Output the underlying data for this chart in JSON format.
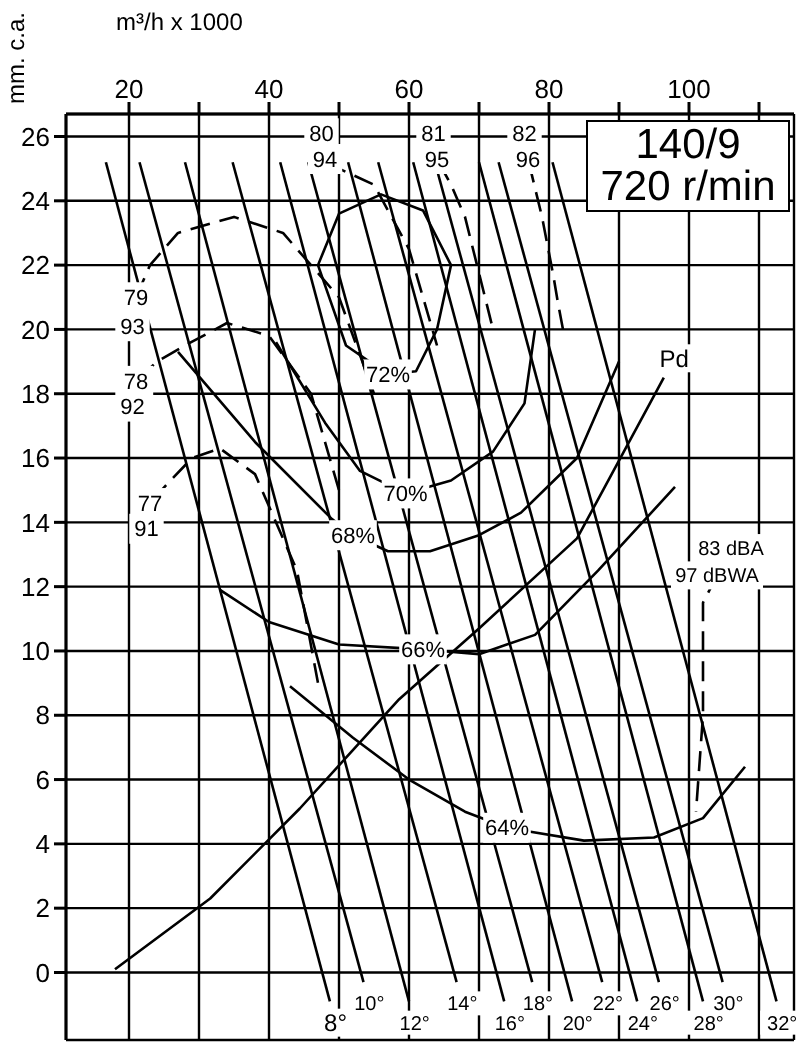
{
  "chart_data": {
    "type": "line",
    "xlabel": "m³/h x 1000",
    "ylabel": "mm. c.a.",
    "xlim": [
      11,
      115
    ],
    "ylim": [
      -2.1,
      26.7
    ],
    "xticks": [
      20,
      {
        "value": 30,
        "label": null
      },
      40,
      {
        "value": 50,
        "label": null
      },
      60,
      {
        "value": 70,
        "label": null
      },
      80,
      {
        "value": 90,
        "label": null
      },
      100,
      {
        "value": 110,
        "label": null
      }
    ],
    "yticks": [
      0,
      2,
      4,
      6,
      8,
      10,
      12,
      14,
      16,
      18,
      20,
      22,
      24,
      26
    ],
    "grid": true,
    "marker": "none",
    "line_style": "solid",
    "series": [
      {
        "name": "8°",
        "color": "#000000",
        "x": [
          16.7,
          48.7
        ],
        "values": [
          25.2,
          -0.9
        ]
      },
      {
        "name": "10°",
        "color": "#000000",
        "x": [
          21.5,
          53.5
        ],
        "values": [
          25.2,
          -0.3
        ]
      },
      {
        "name": "12°",
        "color": "#000000",
        "x": [
          28,
          60
        ],
        "values": [
          25.2,
          -0.9
        ]
      },
      {
        "name": "14°",
        "color": "#000000",
        "x": [
          34.8,
          66.8
        ],
        "values": [
          25.2,
          -0.3
        ]
      },
      {
        "name": "16°",
        "color": "#000000",
        "x": [
          41.6,
          73.6
        ],
        "values": [
          25.2,
          -0.9
        ]
      },
      {
        "name": "18°",
        "color": "#000000",
        "x": [
          45.6,
          77.6
        ],
        "values": [
          25.2,
          -0.3
        ]
      },
      {
        "name": "20°",
        "color": "#000000",
        "x": [
          51.3,
          83.3
        ],
        "values": [
          25.2,
          -0.9
        ]
      },
      {
        "name": "22°",
        "color": "#000000",
        "x": [
          55.6,
          87.6
        ],
        "values": [
          25.2,
          -0.3
        ]
      },
      {
        "name": "24°",
        "color": "#000000",
        "x": [
          60.6,
          92.6
        ],
        "values": [
          25.2,
          -0.9
        ]
      },
      {
        "name": "26°",
        "color": "#000000",
        "x": [
          63.7,
          95.7
        ],
        "values": [
          25.2,
          -0.3
        ]
      },
      {
        "name": "28°",
        "color": "#000000",
        "x": [
          70,
          102
        ],
        "values": [
          25.2,
          -0.9
        ]
      },
      {
        "name": "30°",
        "color": "#000000",
        "x": [
          72.8,
          104.8
        ],
        "values": [
          25.2,
          -0.3
        ]
      },
      {
        "name": "32°",
        "color": "#000000",
        "x": [
          80.5,
          112.5
        ],
        "values": [
          25.2,
          -0.9
        ]
      },
      {
        "color": "#000000",
        "x": [
          47,
          50,
          56,
          62,
          66
        ],
        "values": [
          22,
          23.6,
          24.2,
          23.7,
          22
        ]
      },
      {
        "color": "#000000",
        "x": [
          47,
          51,
          57,
          61,
          64,
          66
        ],
        "values": [
          22,
          19.5,
          18.6,
          18.7,
          20,
          22
        ]
      },
      {
        "color": "#000000",
        "x": [
          41,
          48,
          53,
          59.5,
          66,
          72,
          76.5,
          78
        ],
        "values": [
          19.6,
          17.1,
          15.6,
          14.9,
          15.3,
          16.2,
          17.7,
          20
        ]
      },
      {
        "color": "#000000",
        "x": [
          27,
          38,
          49,
          52,
          57,
          63,
          70,
          76,
          84,
          90
        ],
        "values": [
          19.3,
          16.5,
          14.1,
          13.6,
          13.1,
          13.1,
          13.6,
          14.3,
          16,
          19
        ]
      },
      {
        "color": "#000000",
        "x": [
          33,
          40,
          50,
          62,
          70,
          78,
          87,
          98
        ],
        "values": [
          11.9,
          10.9,
          10.2,
          10.05,
          9.9,
          10.5,
          12.5,
          15.1
        ]
      },
      {
        "color": "#000000",
        "x": [
          43,
          52,
          60,
          68,
          74,
          85,
          95,
          102,
          108
        ],
        "values": [
          8.9,
          7.3,
          6,
          5,
          4.5,
          4.1,
          4.2,
          4.8,
          6.4
        ]
      },
      {
        "name": "Pd",
        "color": "#000000",
        "x": [
          18,
          31.6,
          44.4,
          58.6,
          70,
          84,
          96.4
        ],
        "values": [
          0.1,
          2.3,
          5.1,
          8.5,
          10.7,
          13.5,
          18.5
        ]
      },
      {
        "color": "#000000",
        "line_style": "dashed",
        "x": [
          22.5,
          23,
          25.5,
          29,
          33,
          38,
          44,
          47
        ],
        "values": [
          13.8,
          14.6,
          15.2,
          16,
          16.3,
          15.5,
          12.5,
          9
        ]
      },
      {
        "color": "#000000",
        "line_style": "dashed",
        "x": [
          20.5,
          21,
          24,
          28,
          34,
          40,
          46,
          50
        ],
        "values": [
          17.6,
          18.4,
          19,
          19.5,
          20.2,
          19.8,
          18,
          15
        ]
      },
      {
        "color": "#000000",
        "line_style": "dashed",
        "x": [
          20.5,
          21,
          23,
          27,
          35,
          42,
          50,
          55
        ],
        "values": [
          20.1,
          21,
          22,
          23,
          23.5,
          23,
          21,
          18
        ]
      },
      {
        "color": "#000000",
        "line_style": "dashed",
        "x": [
          47.5,
          48,
          50,
          55,
          60,
          64
        ],
        "values": [
          26.1,
          25.3,
          25,
          24.5,
          22.5,
          19.5
        ]
      },
      {
        "color": "#000000",
        "line_style": "dashed",
        "x": [
          63.5,
          64,
          66,
          68,
          72
        ],
        "values": [
          26.1,
          25.3,
          24.5,
          23.5,
          20
        ]
      },
      {
        "color": "#000000",
        "line_style": "dashed",
        "x": [
          76.5,
          77,
          78,
          79,
          79.8,
          80.6,
          81.3,
          82
        ],
        "values": [
          26.1,
          25.3,
          24.4,
          23.5,
          22.6,
          21.7,
          20.8,
          20
        ]
      },
      {
        "color": "#000000",
        "line_style": "dashed",
        "x": [
          106,
          102,
          102,
          101
        ],
        "values": [
          13.2,
          11.5,
          8,
          5
        ]
      }
    ],
    "annotations": [
      "140/9",
      "720 r/min",
      {
        "text": "72%",
        "x": 57,
        "y": 18.6
      },
      {
        "text": "70%",
        "x": 59.5,
        "y": 14.9
      },
      {
        "text": "68%",
        "x": 52,
        "y": 13.6
      },
      {
        "text": "66%",
        "x": 62,
        "y": 10.05
      },
      {
        "text": "64%",
        "x": 74,
        "y": 4.5
      },
      {
        "text": "79",
        "x": 21,
        "y": 21
      },
      {
        "text": "93",
        "x": 20.5,
        "y": 20.1
      },
      {
        "text": "78",
        "x": 21,
        "y": 18.4
      },
      {
        "text": "92",
        "x": 20.5,
        "y": 17.6
      },
      {
        "text": "77",
        "x": 23,
        "y": 14.6
      },
      {
        "text": "91",
        "x": 22.5,
        "y": 13.8
      },
      {
        "text": "80",
        "x": 47.5,
        "y": 26.1
      },
      {
        "text": "94",
        "x": 48,
        "y": 25.3
      },
      {
        "text": "81",
        "x": 63.5,
        "y": 26.1
      },
      {
        "text": "95",
        "x": 64,
        "y": 25.3
      },
      {
        "text": "82",
        "x": 76.5,
        "y": 26.1
      },
      {
        "text": "96",
        "x": 77,
        "y": 25.3
      },
      {
        "text": "83 dBA",
        "x": 106,
        "y": 13.2
      },
      {
        "text": "97 dBWA",
        "x": 104,
        "y": 12.35
      }
    ]
  }
}
